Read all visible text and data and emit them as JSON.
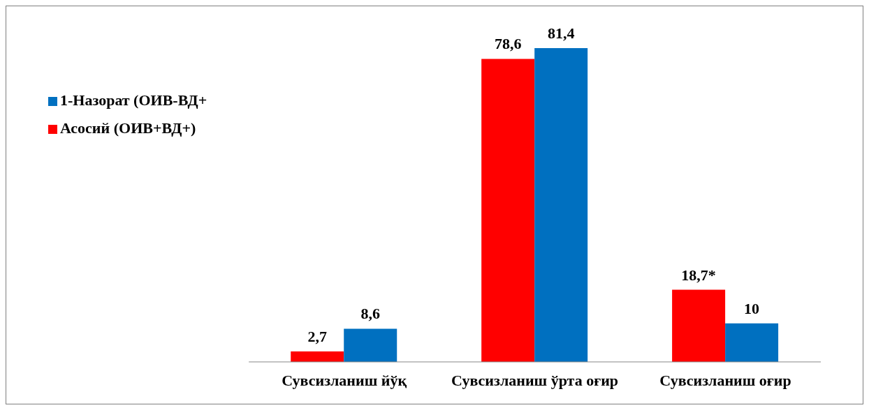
{
  "chart_data": {
    "type": "bar",
    "categories": [
      "Сувсизланиш йўқ",
      "Сувсизланиш  ўрта оғир",
      "Сувсизланиш оғир"
    ],
    "series": [
      {
        "name": "Асосий (ОИВ+ВД+)",
        "color": "#ff0000",
        "values": [
          2.7,
          78.6,
          18.7
        ],
        "value_labels": [
          "2,7",
          "78,6",
          "18,7*"
        ]
      },
      {
        "name": "1-Назорат (ОИВ-ВД+",
        "color": "#0070c0",
        "values": [
          8.6,
          81.4,
          10
        ],
        "value_labels": [
          "8,6",
          "81,4",
          "10"
        ]
      }
    ],
    "legend": "top left",
    "grid": false
  }
}
